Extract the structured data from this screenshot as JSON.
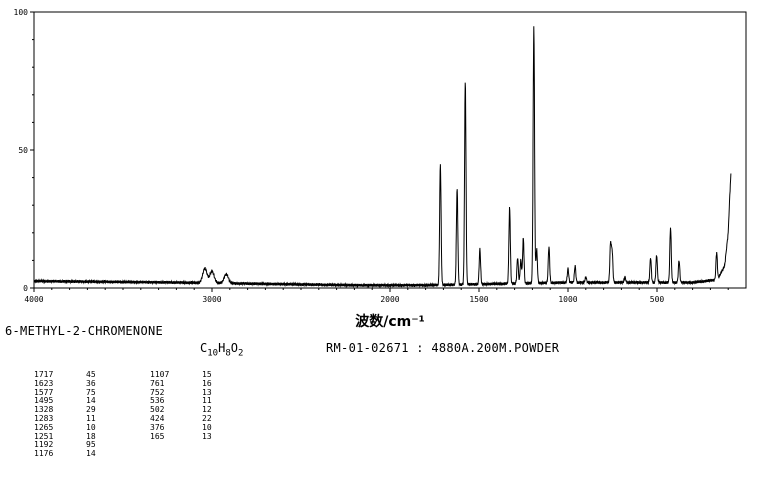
{
  "chart_data": {
    "type": "line",
    "xlabel": "波数/cm⁻¹",
    "ylabel": "",
    "xlim": [
      4000,
      0
    ],
    "ylim": [
      0,
      100
    ],
    "x_ticks": [
      "4000",
      "3000",
      "2000",
      "1500",
      "1000",
      "500"
    ],
    "x_tick_values": [
      4000,
      3000,
      2000,
      1500,
      1000,
      500
    ],
    "y_ticks": [
      "0",
      "50",
      "100"
    ],
    "y_tick_values": [
      0,
      50,
      100
    ],
    "peaks": [
      {
        "x": 3040,
        "y": 7
      },
      {
        "x": 3000,
        "y": 6
      },
      {
        "x": 2920,
        "y": 5
      },
      {
        "x": 1717,
        "y": 45
      },
      {
        "x": 1623,
        "y": 36
      },
      {
        "x": 1577,
        "y": 75
      },
      {
        "x": 1495,
        "y": 14
      },
      {
        "x": 1328,
        "y": 29
      },
      {
        "x": 1283,
        "y": 11
      },
      {
        "x": 1265,
        "y": 10
      },
      {
        "x": 1251,
        "y": 18
      },
      {
        "x": 1192,
        "y": 95
      },
      {
        "x": 1176,
        "y": 14
      },
      {
        "x": 1107,
        "y": 15
      },
      {
        "x": 1000,
        "y": 7
      },
      {
        "x": 960,
        "y": 8
      },
      {
        "x": 900,
        "y": 4
      },
      {
        "x": 761,
        "y": 16
      },
      {
        "x": 752,
        "y": 13
      },
      {
        "x": 680,
        "y": 4
      },
      {
        "x": 536,
        "y": 11
      },
      {
        "x": 502,
        "y": 12
      },
      {
        "x": 424,
        "y": 22
      },
      {
        "x": 376,
        "y": 10
      },
      {
        "x": 165,
        "y": 13
      }
    ],
    "baseline": [
      {
        "x": 4000,
        "y": 2.5
      },
      {
        "x": 3200,
        "y": 2
      },
      {
        "x": 2200,
        "y": 1
      },
      {
        "x": 1800,
        "y": 1
      },
      {
        "x": 1000,
        "y": 2
      },
      {
        "x": 300,
        "y": 2
      },
      {
        "x": 160,
        "y": 3
      },
      {
        "x": 120,
        "y": 8
      },
      {
        "x": 100,
        "y": 20
      },
      {
        "x": 90,
        "y": 35
      },
      {
        "x": 85,
        "y": 41
      }
    ]
  },
  "compound_name": "6-METHYL-2-CHROMENONE",
  "formula": {
    "c": "C",
    "c_n": "10",
    "h": "H",
    "h_n": "8",
    "o": "O",
    "o_n": "2"
  },
  "sample_info": "RM-01-02671 : 4880A.200M.POWDER",
  "peak_table": {
    "column1": [
      {
        "wn": "1717",
        "i": "45"
      },
      {
        "wn": "1623",
        "i": "36"
      },
      {
        "wn": "1577",
        "i": "75"
      },
      {
        "wn": "1495",
        "i": "14"
      },
      {
        "wn": "1328",
        "i": "29"
      },
      {
        "wn": "1283",
        "i": "11"
      },
      {
        "wn": "1265",
        "i": "10"
      },
      {
        "wn": "1251",
        "i": "18"
      },
      {
        "wn": "1192",
        "i": "95"
      },
      {
        "wn": "1176",
        "i": "14"
      }
    ],
    "column2": [
      {
        "wn": "1107",
        "i": "15"
      },
      {
        "wn": "761",
        "i": "16"
      },
      {
        "wn": "752",
        "i": "13"
      },
      {
        "wn": "536",
        "i": "11"
      },
      {
        "wn": "502",
        "i": "12"
      },
      {
        "wn": "424",
        "i": "22"
      },
      {
        "wn": "376",
        "i": "10"
      },
      {
        "wn": "165",
        "i": "13"
      }
    ]
  }
}
